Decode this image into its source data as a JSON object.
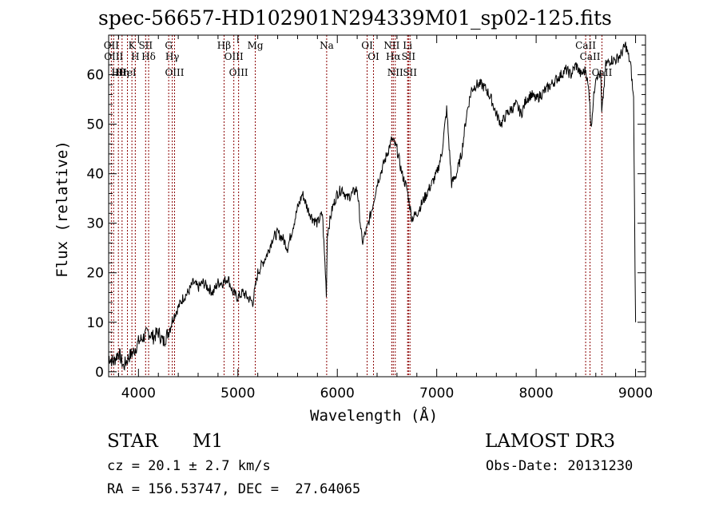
{
  "chart_data": {
    "type": "line",
    "title": "spec-56657-HD102901N294339M01_sp02-125.fits",
    "xlabel": "Wavelength (Å)",
    "ylabel": "Flux (relative)",
    "xlim": [
      3700,
      9100
    ],
    "ylim": [
      -1,
      68
    ],
    "x_ticks": [
      4000,
      5000,
      6000,
      7000,
      8000,
      9000
    ],
    "y_ticks": [
      0,
      10,
      20,
      30,
      40,
      50,
      60
    ],
    "x_tick_labels": [
      "4000",
      "5000",
      "6000",
      "7000",
      "8000",
      "9000"
    ],
    "y_tick_labels": [
      "0",
      "10",
      "20",
      "30",
      "40",
      "50",
      "60"
    ],
    "grid": false,
    "line_color": "#000000",
    "marker_color": "#8b0000",
    "series": [
      {
        "name": "spectrum",
        "x": [
          3700,
          3750,
          3800,
          3850,
          3900,
          3950,
          4000,
          4050,
          4100,
          4150,
          4200,
          4250,
          4300,
          4350,
          4400,
          4450,
          4500,
          4550,
          4600,
          4650,
          4700,
          4750,
          4800,
          4850,
          4900,
          4950,
          5000,
          5050,
          5100,
          5150,
          5200,
          5250,
          5300,
          5350,
          5400,
          5450,
          5500,
          5550,
          5600,
          5650,
          5700,
          5750,
          5800,
          5850,
          5890,
          5900,
          5950,
          6000,
          6050,
          6100,
          6150,
          6200,
          6250,
          6300,
          6350,
          6400,
          6450,
          6500,
          6550,
          6600,
          6650,
          6700,
          6750,
          6800,
          6850,
          6900,
          6950,
          7000,
          7050,
          7100,
          7150,
          7200,
          7250,
          7300,
          7350,
          7400,
          7450,
          7500,
          7550,
          7600,
          7650,
          7700,
          7750,
          7800,
          7850,
          7900,
          7950,
          8000,
          8050,
          8100,
          8150,
          8200,
          8250,
          8300,
          8350,
          8400,
          8450,
          8500,
          8540,
          8550,
          8600,
          8650,
          8660,
          8700,
          8750,
          8800,
          8850,
          8900,
          8950,
          8980,
          9000
        ],
        "y": [
          3,
          2,
          4,
          1,
          3,
          4,
          6,
          7,
          8,
          7,
          8,
          6,
          8,
          11,
          13,
          15,
          16,
          18,
          17,
          18,
          17,
          16,
          18,
          18,
          19,
          16,
          15,
          16,
          15,
          14,
          20,
          22,
          24,
          27,
          28,
          27,
          25,
          29,
          33,
          36,
          33,
          31,
          30,
          32,
          16,
          28,
          33,
          36,
          37,
          35,
          36,
          37,
          26,
          29,
          33,
          38,
          41,
          44,
          47,
          45,
          40,
          37,
          31,
          32,
          34,
          36,
          38,
          40,
          44,
          53,
          38,
          40,
          44,
          52,
          57,
          58,
          58,
          57,
          55,
          52,
          50,
          52,
          53,
          54,
          52,
          55,
          56,
          55,
          56,
          57,
          58,
          59,
          60,
          61,
          60,
          62,
          60,
          61,
          55,
          49,
          60,
          60,
          52,
          62,
          63,
          63,
          64,
          66,
          62,
          55,
          10
        ]
      }
    ],
    "line_markers": [
      {
        "wavelength": 3727,
        "label": "OII"
      },
      {
        "wavelength": 3750,
        "label": "OIII"
      },
      {
        "wavelength": 3798,
        "label": "Hθ"
      },
      {
        "wavelength": 3835,
        "label": "Hη"
      },
      {
        "wavelength": 3889,
        "label": "HeI"
      },
      {
        "wavelength": 3934,
        "label": "K"
      },
      {
        "wavelength": 3968,
        "label": "H"
      },
      {
        "wavelength": 4072,
        "label": "SII"
      },
      {
        "wavelength": 4102,
        "label": "Hδ"
      },
      {
        "wavelength": 4304,
        "label": "G"
      },
      {
        "wavelength": 4340,
        "label": "Hγ"
      },
      {
        "wavelength": 4363,
        "label": "OIII"
      },
      {
        "wavelength": 4861,
        "label": "Hβ"
      },
      {
        "wavelength": 4959,
        "label": "OIII"
      },
      {
        "wavelength": 5007,
        "label": "OIII"
      },
      {
        "wavelength": 5175,
        "label": "Mg"
      },
      {
        "wavelength": 5893,
        "label": "Na"
      },
      {
        "wavelength": 6300,
        "label": "OI"
      },
      {
        "wavelength": 6364,
        "label": "OI"
      },
      {
        "wavelength": 6548,
        "label": "NII"
      },
      {
        "wavelength": 6563,
        "label": "Hα"
      },
      {
        "wavelength": 6583,
        "label": "NII"
      },
      {
        "wavelength": 6707,
        "label": "Li"
      },
      {
        "wavelength": 6716,
        "label": "SII"
      },
      {
        "wavelength": 6731,
        "label": "SII"
      },
      {
        "wavelength": 8498,
        "label": "CaII"
      },
      {
        "wavelength": 8542,
        "label": "CaII"
      },
      {
        "wavelength": 8662,
        "label": "CaII"
      }
    ]
  },
  "info": {
    "object_class": "STAR",
    "subclass": "M1",
    "survey": "LAMOST DR3",
    "cz": "cz = 20.1 ± 2.7 km/s",
    "obs_date": "Obs-Date: 20131230",
    "coords": "RA = 156.53747, DEC =  27.64065"
  }
}
